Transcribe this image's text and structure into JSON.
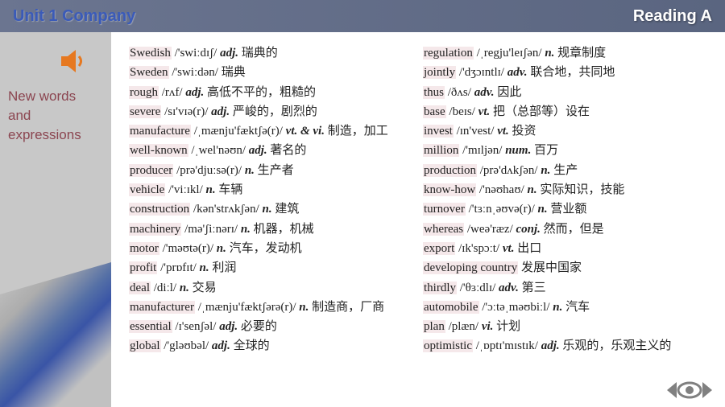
{
  "header": {
    "unit_title": "Unit 1 Company",
    "section": "Reading A"
  },
  "sidebar": {
    "line1": "New words",
    "line2": "and",
    "line3": "expressions"
  },
  "colors": {
    "header_left": "#3b5bb8",
    "header_right": "#ffffff",
    "sidebar_text": "#8b4550",
    "speaker": "#e67820",
    "word_highlight": "#f5e8ea",
    "nav_icon": "#808080"
  },
  "vocab_left": [
    {
      "w": "Swedish",
      "p": "/'swiːdɪʃ/",
      "pos": "adj.",
      "d": "瑞典的"
    },
    {
      "w": "Sweden",
      "p": "/'swiːdən/",
      "pos": "",
      "d": "瑞典"
    },
    {
      "w": "rough",
      "p": "/rʌf/",
      "pos": "adj.",
      "d": "高低不平的，粗糙的"
    },
    {
      "w": "severe",
      "p": "/sɪ'vɪə(r)/",
      "pos": "adj.",
      "d": "严峻的，剧烈的"
    },
    {
      "w": "manufacture",
      "p": "/ˌmænju'fæktʃə(r)/",
      "pos": "vt. & vi.",
      "d": "制造，加工"
    },
    {
      "w": "well-known",
      "p": "/ˌwel'nəʊn/",
      "pos": "adj.",
      "d": "著名的"
    },
    {
      "w": "producer",
      "p": "/prə'djuːsə(r)/",
      "pos": "n.",
      "d": "生产者"
    },
    {
      "w": "vehicle",
      "p": "/'viːɪkl/",
      "pos": "n.",
      "d": "车辆"
    },
    {
      "w": "construction",
      "p": "/kən'strʌkʃən/",
      "pos": "n.",
      "d": "建筑"
    },
    {
      "w": "machinery",
      "p": "/mə'ʃiːnərɪ/",
      "pos": "n.",
      "d": "机器，机械"
    },
    {
      "w": "motor",
      "p": "/'məʊtə(r)/",
      "pos": "n.",
      "d": "汽车，发动机"
    },
    {
      "w": "profit",
      "p": "/'prɒfɪt/",
      "pos": "n.",
      "d": "利润"
    },
    {
      "w": "deal",
      "p": "/diːl/",
      "pos": "n.",
      "d": "交易"
    },
    {
      "w": "manufacturer",
      "p": "/ˌmænju'fæktʃərə(r)/",
      "pos": "n.",
      "d": "制造商，厂商"
    },
    {
      "w": "essential",
      "p": "/ɪ'senʃəl/",
      "pos": "adj.",
      "d": "必要的"
    },
    {
      "w": "global",
      "p": "/'gləʊbəl/",
      "pos": "adj.",
      "d": "全球的"
    }
  ],
  "vocab_right": [
    {
      "w": "regulation",
      "p": "/ˌregju'leɪʃən/",
      "pos": "n.",
      "d": "规章制度"
    },
    {
      "w": "jointly",
      "p": "/'dʒɔɪntlɪ/",
      "pos": "adv.",
      "d": "联合地，共同地"
    },
    {
      "w": "thus",
      "p": "/ðʌs/",
      "pos": "adv.",
      "d": "因此"
    },
    {
      "w": "base",
      "p": "/beɪs/",
      "pos": "vt.",
      "d": "把（总部等）设在"
    },
    {
      "w": "invest",
      "p": "/ɪn'vest/",
      "pos": "vt.",
      "d": "投资"
    },
    {
      "w": "million",
      "p": "/'mɪljən/",
      "pos": "num.",
      "d": "百万"
    },
    {
      "w": "production",
      "p": "/prə'dʌkʃən/",
      "pos": "n.",
      "d": "生产"
    },
    {
      "w": "know-how",
      "p": "/'nəʊhaʊ/",
      "pos": "n.",
      "d": "实际知识，技能"
    },
    {
      "w": "turnover",
      "p": "/'tɜːnˌəʊvə(r)/",
      "pos": "n.",
      "d": "营业额"
    },
    {
      "w": "whereas",
      "p": "/weə'ræz/",
      "pos": "conj.",
      "d": "然而，但是"
    },
    {
      "w": "export",
      "p": "/ɪk'spɔːt/",
      "pos": "vt.",
      "d": "出口"
    },
    {
      "w": "developing country",
      "p": "",
      "pos": "",
      "d": "发展中国家"
    },
    {
      "w": "thirdly",
      "p": "/'θɜːdlɪ/",
      "pos": "adv.",
      "d": "第三"
    },
    {
      "w": "automobile",
      "p": "/'ɔːtəˌməʊbiːl/",
      "pos": "n.",
      "d": "汽车"
    },
    {
      "w": "plan",
      "p": "/plæn/",
      "pos": "vi.",
      "d": "计划"
    },
    {
      "w": "optimistic",
      "p": "/ˌɒptɪ'mɪstɪk/",
      "pos": "adj.",
      "d": "乐观的，乐观主义的"
    }
  ]
}
